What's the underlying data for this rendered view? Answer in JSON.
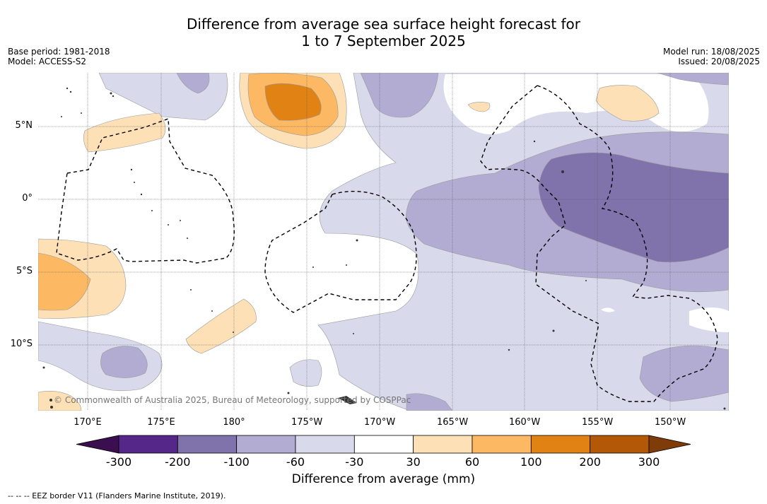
{
  "title_line1": "Difference from average sea surface height forecast for",
  "title_line2": "1 to 7 September 2025",
  "meta_left": {
    "base_period": "Base period: 1981-2018",
    "model": "Model: ACCESS-S2"
  },
  "meta_right": {
    "model_run": "Model run: 18/08/2025",
    "issued": "Issued: 20/08/2025"
  },
  "copyright": "© Commonwealth of Australia 2025, Bureau of Meteorology, supported by COSPPac",
  "lon_labels": [
    "170°E",
    "175°E",
    "180°",
    "175°W",
    "170°W",
    "165°W",
    "160°W",
    "155°W",
    "150°W"
  ],
  "lat_labels": [
    "5°N",
    "0°",
    "5°S",
    "10°S"
  ],
  "colorbar": {
    "title": "Difference from average (mm)",
    "tick_labels": [
      "-300",
      "-200",
      "-100",
      "-60",
      "-30",
      "30",
      "60",
      "100",
      "200",
      "300"
    ],
    "low_extend_color": "#3b0f4f",
    "high_extend_color": "#7f3b08",
    "bin_colors": [
      "#542788",
      "#8073ac",
      "#b2abd2",
      "#d8daeb",
      "#ffffff",
      "#fee0b6",
      "#fdb863",
      "#e08214",
      "#b35806"
    ]
  },
  "colors": {
    "neg_30_60": "#d8daeb",
    "neg_60_100": "#b2abd2",
    "neg_100_200": "#8073ac",
    "pos_30_60": "#fee0b6",
    "pos_60_100": "#fdb863",
    "pos_100_200": "#e08214"
  },
  "footer": "--  --  -- EEZ border V11 (Flanders Marine Institute, 2019)."
}
